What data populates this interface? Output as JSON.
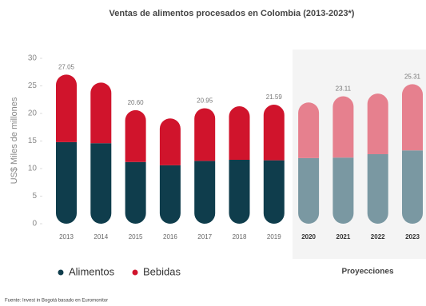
{
  "chart_data": {
    "type": "stacked_bar",
    "title": "Ventas de alimentos procesados en Colombia (2013-2023*)",
    "y_label": "US$ Miles de millones",
    "categories": [
      "2013",
      "2014",
      "2015",
      "2016",
      "2017",
      "2018",
      "2019",
      "2020",
      "2021",
      "2022",
      "2023"
    ],
    "series": [
      {
        "name": "Alimentos",
        "color": "#0f3d4c",
        "values": [
          14.8,
          14.6,
          11.2,
          10.6,
          11.4,
          11.6,
          11.5,
          11.9,
          12.0,
          12.6,
          13.3
        ],
        "colors": [
          "#0f3d4c",
          "#0f3d4c",
          "#0f3d4c",
          "#0f3d4c",
          "#0f3d4c",
          "#0f3d4c",
          "#0f3d4c",
          "#7a98a2",
          "#7a98a2",
          "#7a98a2",
          "#7a98a2"
        ]
      },
      {
        "name": "Bebidas",
        "color": "#d0142c",
        "values": [
          12.25,
          11.0,
          9.4,
          8.5,
          9.55,
          9.7,
          10.09,
          10.1,
          11.11,
          11.0,
          12.01
        ],
        "colors": [
          "#d0142c",
          "#d0142c",
          "#d0142c",
          "#d0142c",
          "#d0142c",
          "#d0142c",
          "#d0142c",
          "#e6808e",
          "#e6808e",
          "#e6808e",
          "#e6808e"
        ]
      }
    ],
    "totals": {
      "values": [
        27.05,
        null,
        20.6,
        null,
        20.95,
        null,
        21.59,
        null,
        23.11,
        null,
        25.31
      ],
      "value_labels": [
        "27.05",
        null,
        "20.60",
        null,
        "20.95",
        null,
        "21.59",
        null,
        "23.11",
        null,
        "25.31"
      ]
    },
    "ylim": [
      0,
      30
    ],
    "yticks": [
      0,
      5,
      10,
      15,
      20,
      25,
      30
    ],
    "projection_label": "Proyecciones",
    "source": "Fuente: Invest in Bogotá basado en Euromonitor"
  }
}
